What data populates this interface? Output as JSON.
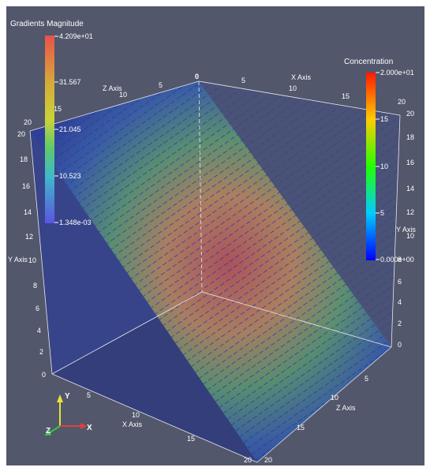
{
  "gradients_bar": {
    "title": "Gradients Magnitude",
    "labels": [
      "4.209e+01",
      "31.567",
      "21.045",
      "10.523",
      "1.348e-03"
    ]
  },
  "concentration_bar": {
    "title": "Concentration",
    "labels": [
      "2.000e+01",
      "15",
      "10",
      "5",
      "0.000e+00"
    ]
  },
  "z_axis": {
    "title": "Z Axis",
    "ticks": [
      "20",
      "15",
      "10",
      "5",
      "0"
    ]
  },
  "x_axis_top": {
    "title": "X Axis",
    "ticks": [
      "5",
      "10",
      "15",
      "20"
    ]
  },
  "y_axis_left": {
    "title": "Y Axis",
    "ticks": [
      "20",
      "18",
      "16",
      "14",
      "12",
      "10",
      "8",
      "6",
      "4",
      "2",
      "0"
    ]
  },
  "y_axis_right": {
    "title": "Y Axis",
    "ticks": [
      "20",
      "18",
      "16",
      "14",
      "12",
      "10",
      "8",
      "6",
      "4",
      "2",
      "0"
    ]
  },
  "x_axis_bottom": {
    "title": "X Axis",
    "ticks": [
      "5",
      "10",
      "15",
      "20"
    ]
  },
  "z_axis_bottom": {
    "title": "Z Axis",
    "ticks": [
      "5",
      "10",
      "15",
      "20"
    ]
  },
  "orientation": {
    "x": "X",
    "y": "Y",
    "z": "Z"
  },
  "colors": {
    "background": "#52576b",
    "x_axis": "#e0413a",
    "y_axis": "#e8e23a",
    "z_axis": "#38c24a"
  }
}
